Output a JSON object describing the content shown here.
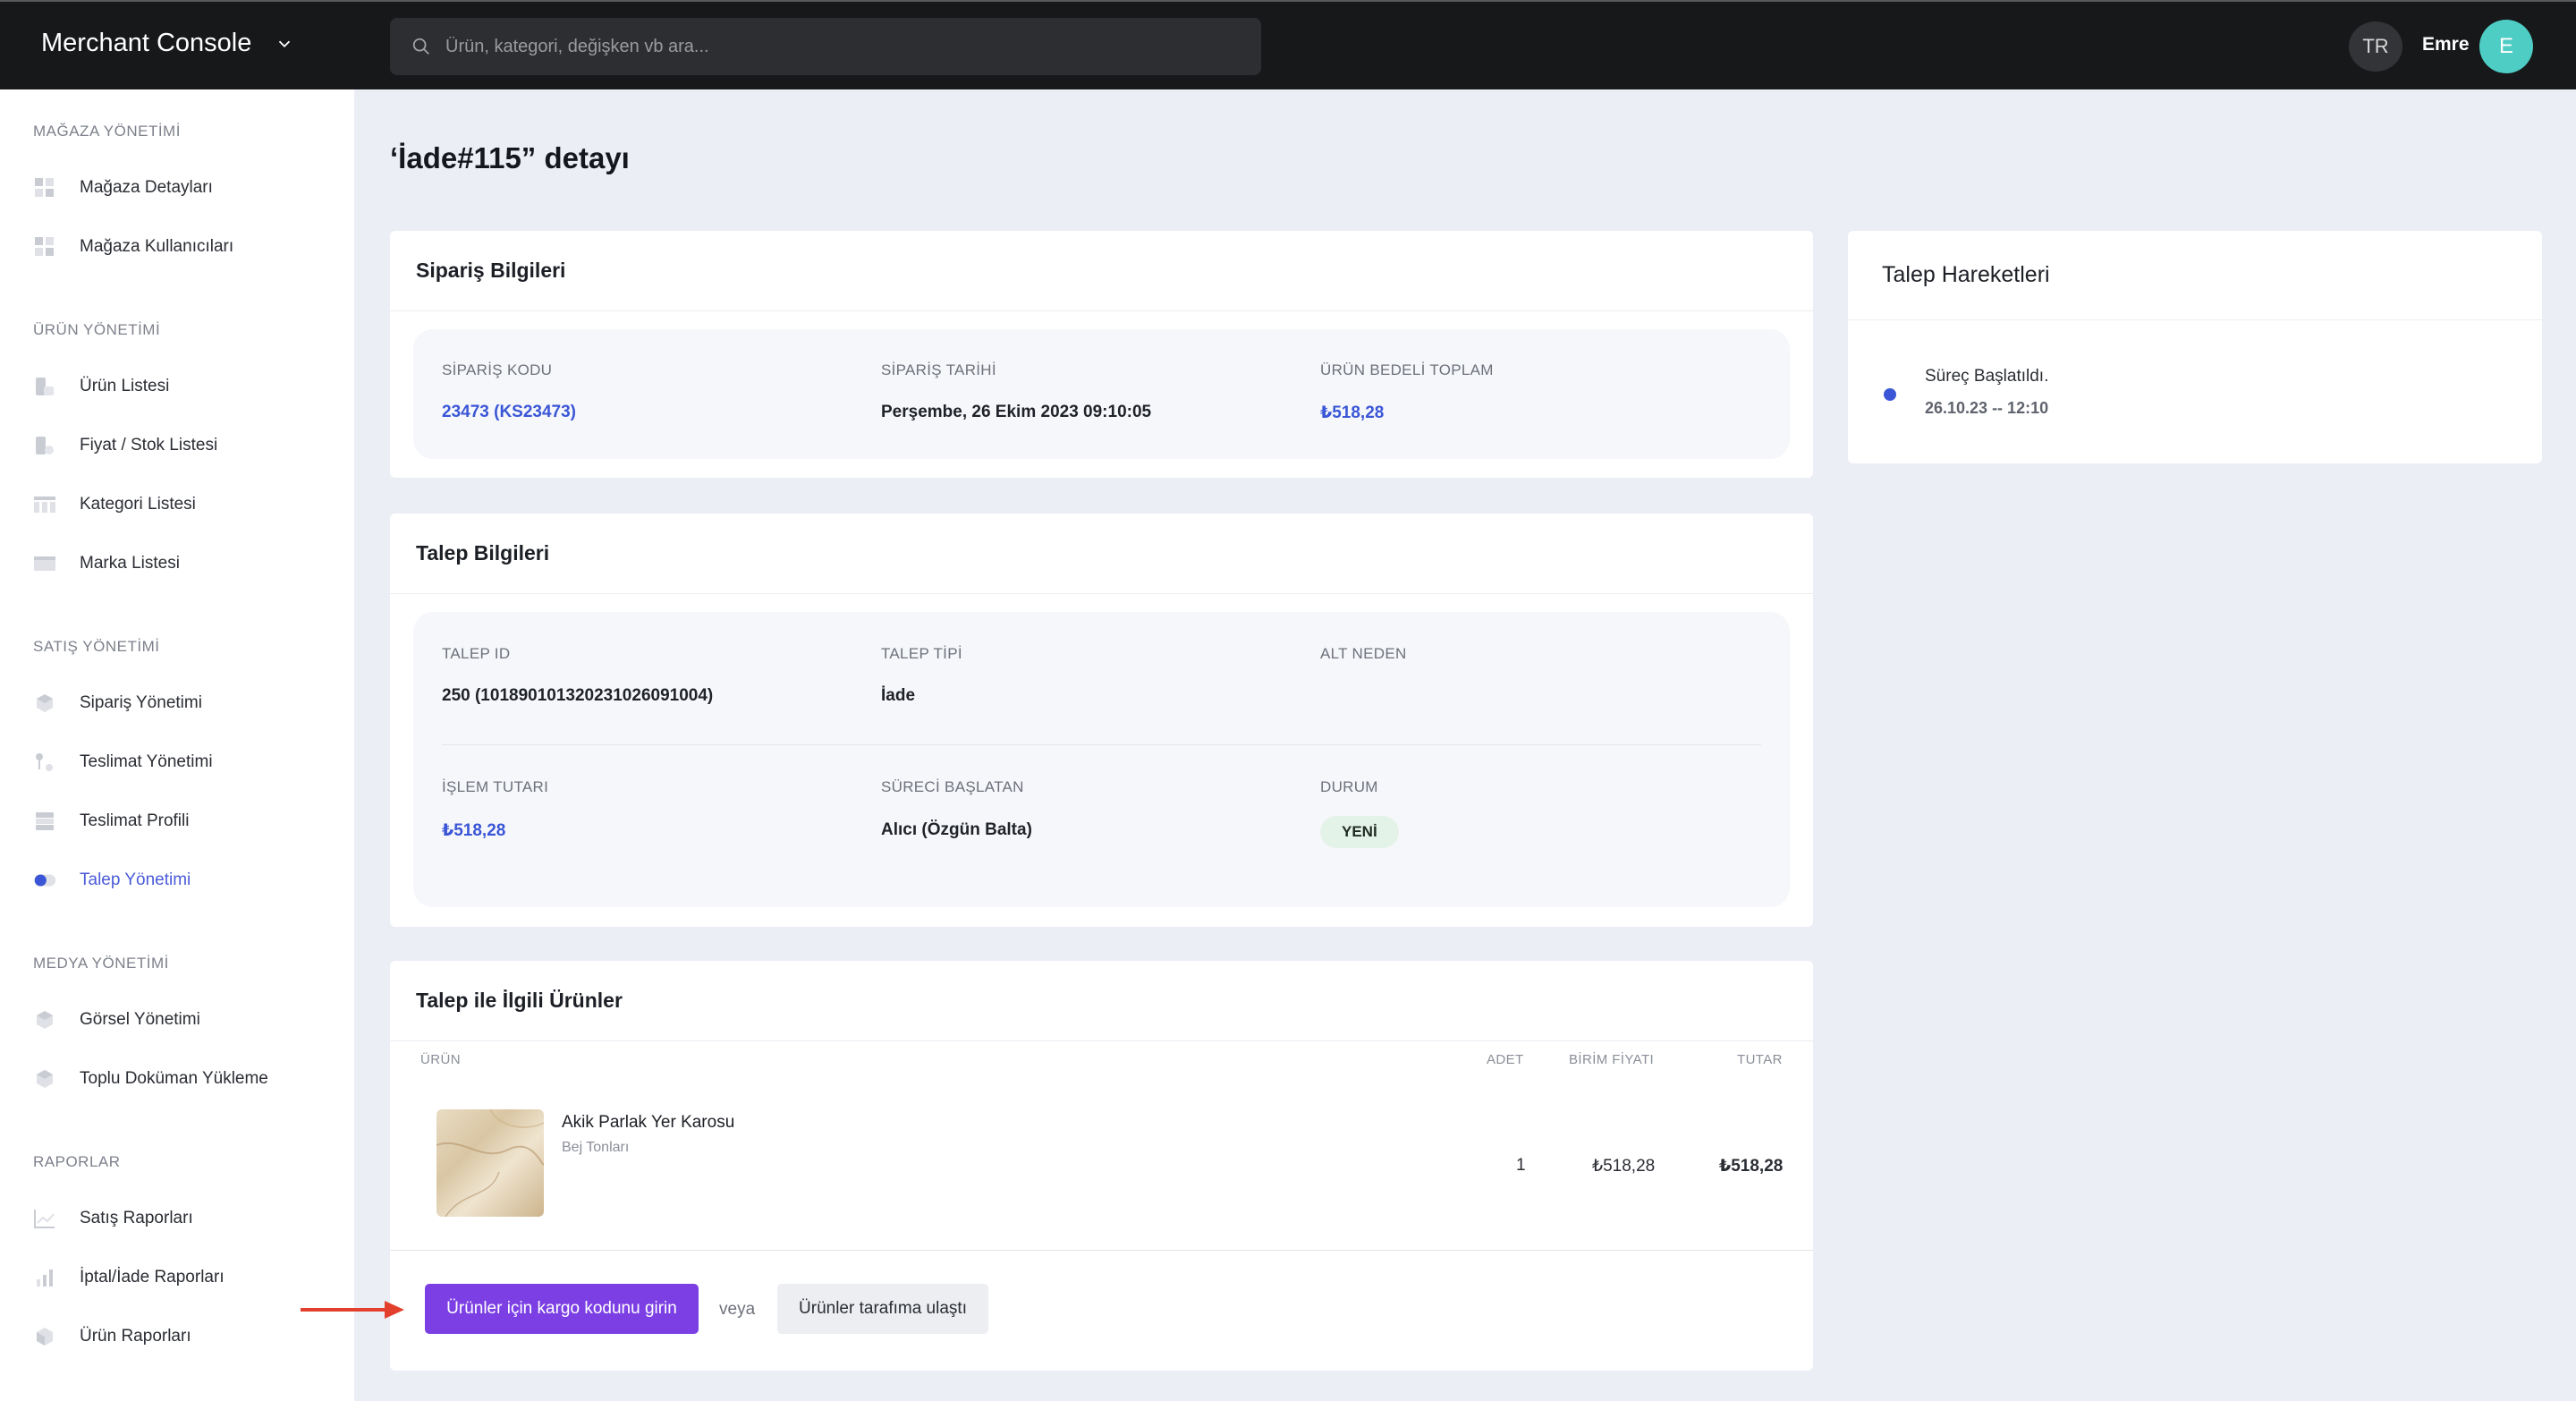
{
  "topbar": {
    "brand": "Merchant Console",
    "search_placeholder": "Ürün, kategori, değişken vb ara...",
    "lang": "TR",
    "user_name": "Emre",
    "avatar_initial": "E"
  },
  "sidebar": {
    "sections": [
      {
        "title": "MAĞAZA YÖNETİMİ",
        "items": [
          {
            "label": "Mağaza Detayları",
            "icon": "grid-icon"
          },
          {
            "label": "Mağaza Kullanıcıları",
            "icon": "grid-icon"
          }
        ]
      },
      {
        "title": "ÜRÜN YÖNETİMİ",
        "items": [
          {
            "label": "Ürün Listesi",
            "icon": "products-icon"
          },
          {
            "label": "Fiyat / Stok Listesi",
            "icon": "price-stock-icon"
          },
          {
            "label": "Kategori Listesi",
            "icon": "table-icon"
          },
          {
            "label": "Marka Listesi",
            "icon": "card-icon"
          }
        ]
      },
      {
        "title": "SATIŞ YÖNETİMİ",
        "items": [
          {
            "label": "Sipariş Yönetimi",
            "icon": "box-icon"
          },
          {
            "label": "Teslimat Yönetimi",
            "icon": "delivery-icon"
          },
          {
            "label": "Teslimat Profili",
            "icon": "server-icon"
          },
          {
            "label": "Talep Yönetimi",
            "icon": "toggle-icon",
            "active": true
          }
        ]
      },
      {
        "title": "MEDYA YÖNETİMİ",
        "items": [
          {
            "label": "Görsel Yönetimi",
            "icon": "box-icon"
          },
          {
            "label": "Toplu Doküman Yükleme",
            "icon": "box-icon"
          }
        ]
      },
      {
        "title": "RAPORLAR",
        "items": [
          {
            "label": "Satış Raporları",
            "icon": "line-chart-icon"
          },
          {
            "label": "İptal/İade Raporları",
            "icon": "bar-chart-icon"
          },
          {
            "label": "Ürün Raporları",
            "icon": "cube-icon"
          }
        ]
      }
    ]
  },
  "page": {
    "title": "‘İade#115” detayı"
  },
  "order_info": {
    "title": "Sipariş Bilgileri",
    "order_code_label": "SİPARİŞ KODU",
    "order_code": "23473 (KS23473)",
    "order_date_label": "SİPARİŞ TARİHİ",
    "order_date": "Perşembe, 26 Ekim 2023 09:10:05",
    "total_label": "ÜRÜN BEDELİ TOPLAM",
    "total": "₺518,28"
  },
  "request_info": {
    "title": "Talep Bilgileri",
    "request_id_label": "TALEP ID",
    "request_id": "250 (1018901013202310260910​04)",
    "request_type_label": "TALEP TİPİ",
    "request_type": "İade",
    "sub_reason_label": "ALT NEDEN",
    "amount_label": "İŞLEM TUTARI",
    "amount": "₺518,28",
    "initiator_label": "SÜRECİ BAŞLATAN",
    "initiator": "Alıcı (Özgün Balta)",
    "status_label": "DURUM",
    "status": "YENİ",
    "status_color": "#e4f3e8"
  },
  "products": {
    "title": "Talep ile İlgili Ürünler",
    "columns": [
      "ÜRÜN",
      "ADET",
      "BİRİM FİYATI",
      "TUTAR"
    ],
    "rows": [
      {
        "name": "Akik Parlak Yer Karosu",
        "variant": "Bej Tonları",
        "qty": "1",
        "unit_price": "₺518,28",
        "total": "₺518,28"
      }
    ],
    "primary_action": "Ürünler için kargo kodunu girin",
    "or_text": "veya",
    "secondary_action": "Ürünler tarafıma ulaştı"
  },
  "timeline": {
    "title": "Talep Hareketleri",
    "events": [
      {
        "title": "Süreç Başlatıldı.",
        "time": "26.10.23 -- 12:10"
      }
    ]
  },
  "colors": {
    "accent": "#7b3fe4",
    "link": "#3a56d6",
    "arrow": "#e2402c"
  }
}
